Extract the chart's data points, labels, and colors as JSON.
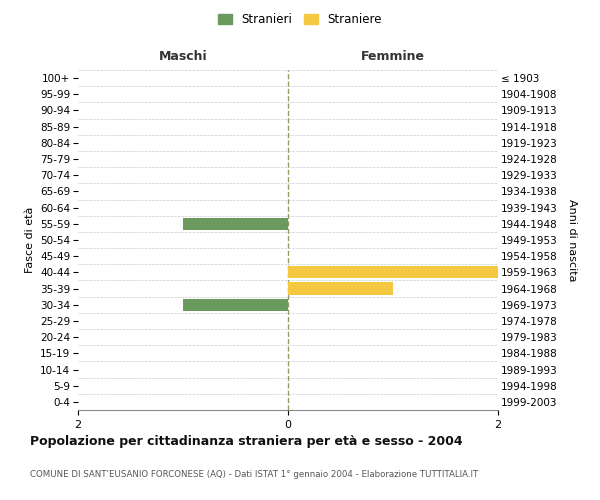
{
  "age_groups": [
    "100+",
    "95-99",
    "90-94",
    "85-89",
    "80-84",
    "75-79",
    "70-74",
    "65-69",
    "60-64",
    "55-59",
    "50-54",
    "45-49",
    "40-44",
    "35-39",
    "30-34",
    "25-29",
    "20-24",
    "15-19",
    "10-14",
    "5-9",
    "0-4"
  ],
  "birth_years": [
    "≤ 1903",
    "1904-1908",
    "1909-1913",
    "1914-1918",
    "1919-1923",
    "1924-1928",
    "1929-1933",
    "1934-1938",
    "1939-1943",
    "1944-1948",
    "1949-1953",
    "1954-1958",
    "1959-1963",
    "1964-1968",
    "1969-1973",
    "1974-1978",
    "1979-1983",
    "1984-1988",
    "1989-1993",
    "1994-1998",
    "1999-2003"
  ],
  "males": [
    0,
    0,
    0,
    0,
    0,
    0,
    0,
    0,
    0,
    1,
    0,
    0,
    0,
    0,
    1,
    0,
    0,
    0,
    0,
    0,
    0
  ],
  "females": [
    0,
    0,
    0,
    0,
    0,
    0,
    0,
    0,
    0,
    0,
    0,
    0,
    2,
    1,
    0,
    0,
    0,
    0,
    0,
    0,
    0
  ],
  "male_color": "#6b9a5e",
  "female_color": "#f5c842",
  "xlim_min": -2,
  "xlim_max": 2,
  "title_main": "Popolazione per cittadinanza straniera per età e sesso - 2004",
  "title_sub": "COMUNE DI SANT'EUSANIO FORCONESE (AQ) - Dati ISTAT 1° gennaio 2004 - Elaborazione TUTTITALIA.IT",
  "label_maschi": "Maschi",
  "label_femmine": "Femmine",
  "label_stranieri": "Stranieri",
  "label_straniere": "Straniere",
  "ylabel_left": "Fasce di età",
  "ylabel_right": "Anni di nascita",
  "background_color": "#ffffff",
  "grid_color": "#cccccc",
  "center_line_color": "#999966",
  "bar_height": 0.75
}
